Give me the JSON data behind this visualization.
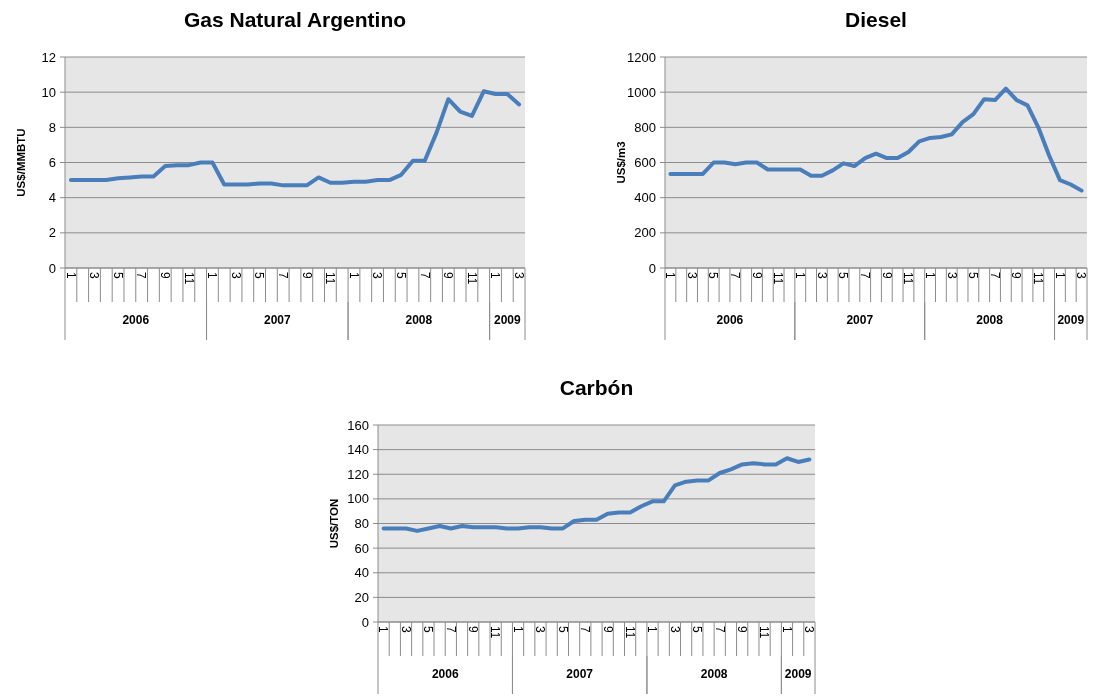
{
  "chart_data": [
    {
      "type": "line",
      "title": "Gas Natural Argentino",
      "ylabel": "US$/MMBTU",
      "categories": [
        "1",
        null,
        "3",
        null,
        "5",
        null,
        "7",
        null,
        "9",
        null,
        "11",
        null,
        "1",
        null,
        "3",
        null,
        "5",
        null,
        "7",
        null,
        "9",
        null,
        "11",
        null,
        "1",
        null,
        "3",
        null,
        "5",
        null,
        "7",
        null,
        "9",
        null,
        "11",
        null,
        "1",
        null,
        "3"
      ],
      "series": [
        {
          "color": "#4a7ebb",
          "values": [
            5.0,
            5.0,
            5.0,
            5.0,
            5.1,
            5.15,
            5.2,
            5.2,
            5.8,
            5.85,
            5.85,
            6.0,
            6.0,
            4.75,
            4.75,
            4.75,
            4.8,
            4.8,
            4.7,
            4.7,
            4.7,
            5.15,
            4.85,
            4.85,
            4.9,
            4.9,
            5.0,
            5.0,
            5.3,
            6.1,
            6.1,
            7.7,
            9.6,
            8.9,
            8.65,
            10.05,
            9.9,
            9.9,
            9.3
          ]
        }
      ],
      "ylim": [
        0,
        12
      ],
      "yticks": [
        0,
        2,
        4,
        6,
        8,
        10,
        12
      ],
      "grid": "y",
      "marker": "none",
      "line_style": "solid",
      "annotations": [
        "2006",
        "2007",
        "2008",
        "2009"
      ]
    },
    {
      "type": "line",
      "title": "Diesel",
      "ylabel": "US$/m3",
      "categories": [
        "1",
        null,
        "3",
        null,
        "5",
        null,
        "7",
        null,
        "9",
        null,
        "11",
        null,
        "1",
        null,
        "3",
        null,
        "5",
        null,
        "7",
        null,
        "9",
        null,
        "11",
        null,
        "1",
        null,
        "3",
        null,
        "5",
        null,
        "7",
        null,
        "9",
        null,
        "11",
        null,
        "1",
        null,
        "3"
      ],
      "series": [
        {
          "color": "#4a7ebb",
          "values": [
            535,
            535,
            535,
            535,
            600,
            600,
            590,
            600,
            600,
            560,
            560,
            560,
            560,
            525,
            525,
            555,
            595,
            580,
            625,
            650,
            625,
            625,
            660,
            720,
            740,
            745,
            760,
            830,
            875,
            960,
            955,
            1020,
            955,
            925,
            800,
            640,
            500,
            475,
            440
          ]
        }
      ],
      "ylim": [
        0,
        1200
      ],
      "yticks": [
        0,
        200,
        400,
        600,
        800,
        1000,
        1200
      ],
      "grid": "y",
      "marker": "none",
      "line_style": "solid",
      "annotations": [
        "2006",
        "2007",
        "2008",
        "2009"
      ]
    },
    {
      "type": "line",
      "title": "Carbón",
      "ylabel": "US$/TON",
      "categories": [
        "1",
        null,
        "3",
        null,
        "5",
        null,
        "7",
        null,
        "9",
        null,
        "11",
        null,
        "1",
        null,
        "3",
        null,
        "5",
        null,
        "7",
        null,
        "9",
        null,
        "11",
        null,
        "1",
        null,
        "3",
        null,
        "5",
        null,
        "7",
        null,
        "9",
        null,
        "11",
        null,
        "1",
        null,
        "3"
      ],
      "series": [
        {
          "color": "#4a7ebb",
          "values": [
            76,
            76,
            76,
            74,
            76,
            78,
            76,
            78,
            77,
            77,
            77,
            76,
            76,
            77,
            77,
            76,
            76,
            82,
            83,
            83,
            88,
            89,
            89,
            94,
            98,
            98,
            111,
            114,
            115,
            115,
            121,
            124,
            128,
            129,
            128,
            128,
            133,
            130,
            132
          ]
        }
      ],
      "ylim": [
        0,
        160
      ],
      "yticks": [
        0,
        20,
        40,
        60,
        80,
        100,
        120,
        140,
        160
      ],
      "grid": "y",
      "marker": "none",
      "line_style": "solid",
      "annotations": [
        "2006",
        "2007",
        "2008",
        "2009"
      ]
    }
  ]
}
